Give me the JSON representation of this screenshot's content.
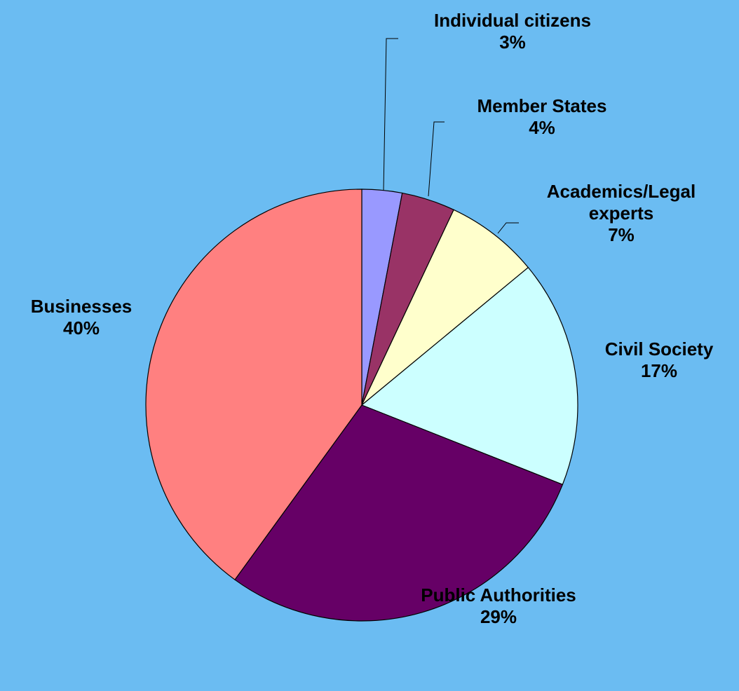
{
  "chart_data": {
    "type": "pie",
    "title": "",
    "start_angle_deg": 0,
    "direction": "clockwise",
    "slices": [
      {
        "label": "Individual citizens",
        "label_lines": [
          "Individual citizens"
        ],
        "value": 3,
        "display": "3%",
        "color": "#9999ff"
      },
      {
        "label": "Member States",
        "label_lines": [
          "Member States"
        ],
        "value": 4,
        "display": "4%",
        "color": "#993366"
      },
      {
        "label": "Academics/Legal experts",
        "label_lines": [
          "Academics/Legal",
          "experts"
        ],
        "value": 7,
        "display": "7%",
        "color": "#ffffcc"
      },
      {
        "label": "Civil Society",
        "label_lines": [
          "Civil Society"
        ],
        "value": 17,
        "display": "17%",
        "color": "#ccffff"
      },
      {
        "label": "Public Authorities",
        "label_lines": [
          "Public Authorities"
        ],
        "value": 29,
        "display": "29%",
        "color": "#660066"
      },
      {
        "label": "Businesses",
        "label_lines": [
          "Businesses"
        ],
        "value": 40,
        "display": "40%",
        "color": "#ff8080"
      }
    ],
    "legend": "none",
    "background": "#6bbcf2"
  }
}
